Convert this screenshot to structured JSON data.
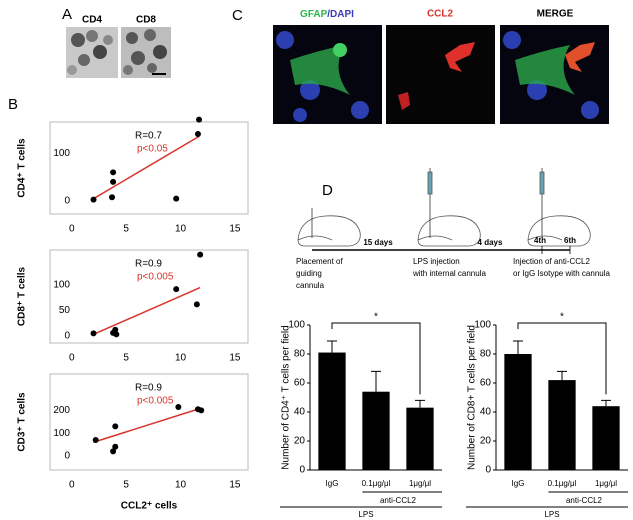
{
  "panels": {
    "a": "A",
    "b": "B",
    "c": "C",
    "d": "D"
  },
  "panel_a": {
    "labels": [
      "CD4",
      "CD8"
    ]
  },
  "panel_c": {
    "labels": [
      [
        "GFAP",
        "/DAPI"
      ],
      [
        "CCL2"
      ],
      [
        "MERGE"
      ]
    ]
  },
  "timeline": {
    "intervals": [
      "15 days",
      "4 days"
    ],
    "days": [
      "4th",
      "6th"
    ],
    "steps": [
      [
        "Placement of",
        "guiding",
        "cannula"
      ],
      [
        "LPS injection",
        "with internal cannula"
      ],
      [
        "Injection of anti-CCL2",
        "or IgG Isotype with cannula"
      ]
    ]
  },
  "chart_data": [
    {
      "type": "scatter",
      "y_label": "CD4⁺ T cells",
      "stats": {
        "r": "R=0.7",
        "p": "p<0.05"
      },
      "p_color": "#d9342b",
      "x": [
        2,
        3.7,
        3.8,
        3.8,
        9.6,
        11.6,
        11.7
      ],
      "y": [
        3,
        8,
        40,
        60,
        5,
        140,
        170
      ],
      "fit_x": [
        2,
        11.7
      ],
      "fit_y": [
        5,
        135
      ],
      "color": "#000000",
      "fit_color": "#d9342b",
      "xlim": [
        -2,
        16.2
      ],
      "ylim": [
        -27,
        165
      ],
      "xticks": [
        0,
        5,
        10,
        15
      ],
      "yticks": [
        0,
        100
      ]
    },
    {
      "type": "scatter",
      "y_label": "CD8⁺ T cells",
      "stats": {
        "r": "R=0.9",
        "p": "p<0.005"
      },
      "p_color": "#d9342b",
      "x": [
        2,
        3.8,
        4,
        4.1,
        9.6,
        11.5,
        11.8
      ],
      "y": [
        5,
        6,
        12,
        3,
        92,
        62,
        160
      ],
      "fit_x": [
        2,
        11.8
      ],
      "fit_y": [
        3,
        95
      ],
      "color": "#000000",
      "fit_color": "#d9342b",
      "xlim": [
        -2,
        16.2
      ],
      "ylim": [
        -14,
        169
      ],
      "xticks": [
        0,
        5,
        10,
        15
      ],
      "yticks": [
        0,
        50,
        100
      ]
    },
    {
      "type": "scatter",
      "y_label": "CD3⁺ T cells",
      "x_label": "CCL2⁺ cells",
      "stats": {
        "r": "R=0.9",
        "p": "p<0.005"
      },
      "p_color": "#d9342b",
      "x": [
        2.2,
        3.8,
        4,
        4,
        9.8,
        11.6,
        11.9
      ],
      "y": [
        70,
        20,
        40,
        130,
        215,
        205,
        200
      ],
      "fit_x": [
        2,
        11.9
      ],
      "fit_y": [
        60,
        210
      ],
      "color": "#000000",
      "fit_color": "#d9342b",
      "xlim": [
        -2,
        16.2
      ],
      "ylim": [
        -62,
        360
      ],
      "xticks": [
        0,
        5,
        10,
        15
      ],
      "yticks": [
        0,
        100,
        200
      ]
    },
    {
      "type": "bar",
      "y_label": "Number of CD4⁺ T cells per field",
      "categories": [
        "IgG",
        "0.1μg/μl",
        "1μg/μl"
      ],
      "values": [
        81,
        54,
        43
      ],
      "errors": [
        8,
        14,
        5
      ],
      "color": "#000000",
      "significance": "*",
      "group_labels": [
        "anti-CCL2",
        "LPS"
      ],
      "ylim": [
        0,
        100
      ],
      "yticks": [
        0,
        20,
        40,
        60,
        80,
        100
      ]
    },
    {
      "type": "bar",
      "y_label": "Number of CD8+ T cells per field",
      "categories": [
        "IgG",
        "0.1μg/μl",
        "1μg/μl"
      ],
      "values": [
        80,
        62,
        44
      ],
      "errors": [
        9,
        6,
        4
      ],
      "color": "#000000",
      "significance": "*",
      "group_labels": [
        "anti-CCL2",
        "LPS"
      ],
      "ylim": [
        0,
        100
      ],
      "yticks": [
        0,
        20,
        40,
        60,
        80,
        100
      ]
    }
  ]
}
